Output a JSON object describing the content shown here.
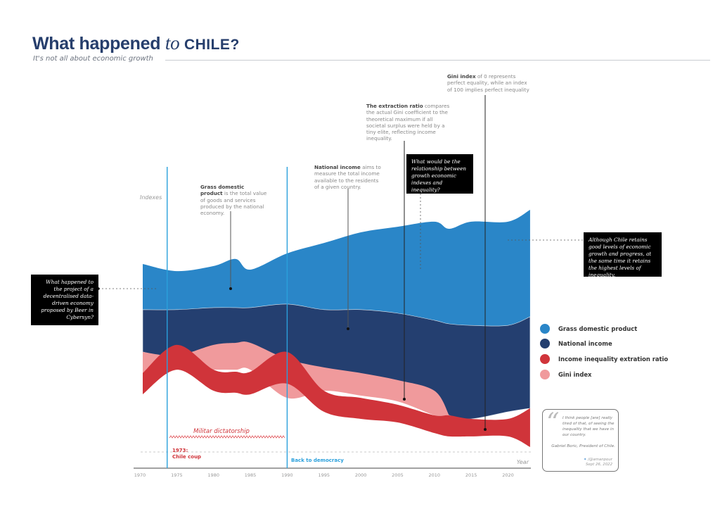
{
  "header": {
    "title_part1": "What happened",
    "title_part2": "to",
    "title_part3": "CHILE?",
    "subtitle": "It's not all about economic growth"
  },
  "annotations": {
    "gdp": {
      "bold": "Grass domestic product",
      "text": " is the total value of goods and services produced by the national economy."
    },
    "national_income": {
      "bold": "National income",
      "text": " aims to measure the total income available to the residents of a given country."
    },
    "extraction": {
      "bold": "The extraction ratio",
      "text": " compares the actual Gini coefficient to the theoretical maximum if all societal surplus were held by a tiny elite, reflecting income inequality."
    },
    "gini": {
      "bold": "Gini index",
      "text": " of 0 represents perfect equality, while an index of 100 implies perfect inequality"
    },
    "question_center": "What would be the relationship between growth economic indexes and inequality?",
    "question_left": "What happened to the project of a decentralised data-driven economy proposed by Beer in Cybersyn?",
    "note_right": "Although Chile retains good levels of economic growth and progress, at the same time it retains the highest levels of inequality."
  },
  "events": {
    "dictatorship": "Militar dictatorship",
    "coup": "1973:\nChile coup",
    "democracy": "Back to democracy"
  },
  "quote": {
    "text": "I think people [are] really tired of that, of seeing the inequality that we have in our country.",
    "author": "Gabriel Boric, President of Chile.",
    "handle": "/@amanpour",
    "date": "Sept 26, 2022"
  },
  "colors": {
    "gdp": "#2a86c8",
    "national_income": "#243f70",
    "extraction": "#d0343a",
    "gini": "#f09a9c",
    "events_blue": "#2aa0dc",
    "events_red": "#d0343a"
  },
  "chart_data": {
    "type": "area",
    "title": "What happened to CHILE?",
    "subtitle": "It's not all about economic growth",
    "xlabel": "Year",
    "ylabel": "Indexes",
    "xlim": [
      1970,
      2023
    ],
    "ylim": [
      0,
      100
    ],
    "x_ticks": [
      "1970",
      "1975",
      "1980",
      "1985",
      "1990",
      "1995",
      "2000",
      "2005",
      "2010",
      "2015",
      "2020"
    ],
    "grid": false,
    "legend_position": "right",
    "x": [
      1970,
      1975,
      1980,
      1983,
      1985,
      1990,
      1995,
      2000,
      2005,
      2010,
      2012,
      2015,
      2020,
      2023
    ],
    "series": [
      {
        "name": "Grass domestic product",
        "color": "#2a86c8",
        "top": [
          73.6,
          70.8,
          72.8,
          75.6,
          71.4,
          77.8,
          81.9,
          86.1,
          88.3,
          90.3,
          87.5,
          90.3,
          90.3,
          95.0
        ],
        "bottom": [
          55.6,
          55.6,
          56.4,
          56.4,
          56.4,
          57.8,
          55.6,
          55.6,
          54.2,
          51.4,
          50.0,
          49.4,
          49.4,
          52.8
        ]
      },
      {
        "name": "National income",
        "color": "#243f70",
        "top": [
          55.6,
          55.6,
          56.4,
          56.4,
          56.4,
          57.8,
          55.6,
          55.6,
          54.2,
          51.4,
          50.0,
          49.4,
          49.4,
          52.8
        ],
        "bottom": [
          38.9,
          36.1,
          34.7,
          35.6,
          36.1,
          33.3,
          29.2,
          26.4,
          22.2,
          18.1,
          13.9,
          12.5,
          15.3,
          16.7
        ]
      },
      {
        "name": "Gini index",
        "color": "#f09a9c",
        "top": [
          38.9,
          37.5,
          41.7,
          42.5,
          42.5,
          36.1,
          32.8,
          30.6,
          27.8,
          23.6,
          13.9,
          null,
          null,
          null
        ],
        "bottom": [
          26.4,
          31.9,
          31.9,
          31.9,
          31.9,
          20.8,
          23.6,
          21.7,
          19.4,
          13.9,
          12.5,
          null,
          null,
          null
        ]
      },
      {
        "name": "Income inequality extration ratio",
        "color": "#d0343a",
        "top": [
          30.6,
          41.7,
          31.9,
          31.1,
          31.1,
          38.9,
          23.6,
          20.8,
          18.1,
          13.9,
          13.9,
          12.5,
          12.5,
          16.7
        ],
        "bottom": [
          22.2,
          31.9,
          23.6,
          22.8,
          22.2,
          26.4,
          15.3,
          12.5,
          11.1,
          6.9,
          5.6,
          5.6,
          5.6,
          1.4
        ]
      }
    ],
    "legend": [
      "Grass domestic product",
      "National income",
      "Income inequality extration ratio",
      "Gini index"
    ],
    "events": [
      {
        "year": 1973,
        "label": "1973: Chile coup"
      },
      {
        "year": 1990,
        "label": "Back to democracy"
      }
    ]
  }
}
